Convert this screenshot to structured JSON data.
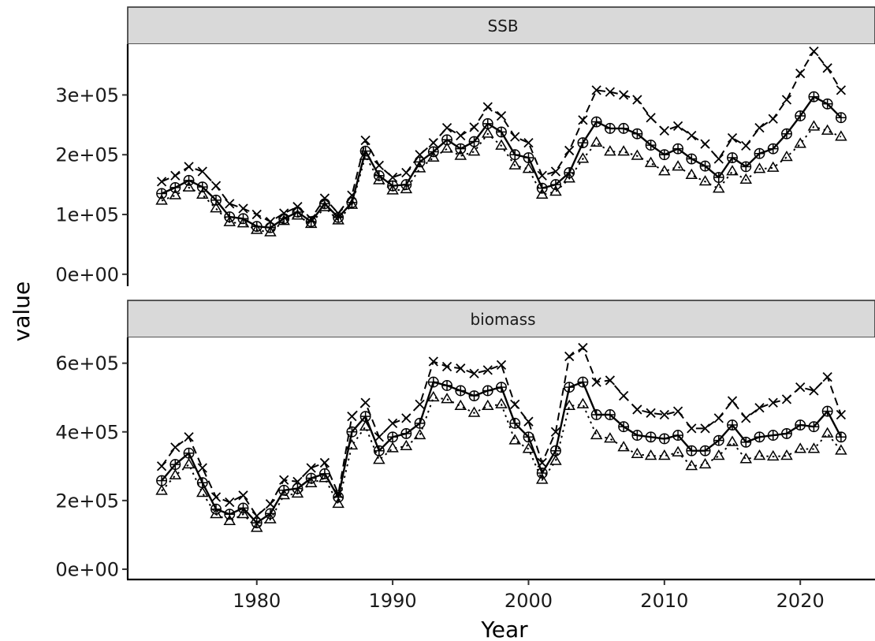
{
  "chart_data": {
    "type": "line",
    "xlabel": "Year",
    "ylabel": "value",
    "xlim": [
      1970.5,
      2025.5
    ],
    "x_ticks": [
      1980,
      1990,
      2000,
      2010,
      2020
    ],
    "x_tick_labels": [
      "1980",
      "1990",
      "2000",
      "2010",
      "2020"
    ],
    "grid": false,
    "colors": {
      "line": "#000000",
      "strip_fill": "#d9d9d9",
      "strip_border": "#333333",
      "background": "#ffffff"
    },
    "x": [
      1973,
      1974,
      1975,
      1976,
      1977,
      1978,
      1979,
      1980,
      1981,
      1982,
      1983,
      1984,
      1985,
      1986,
      1987,
      1988,
      1989,
      1990,
      1991,
      1992,
      1993,
      1994,
      1995,
      1996,
      1997,
      1998,
      1999,
      2000,
      2001,
      2002,
      2003,
      2004,
      2005,
      2006,
      2007,
      2008,
      2009,
      2010,
      2011,
      2012,
      2013,
      2014,
      2015,
      2016,
      2017,
      2018,
      2019,
      2020,
      2021,
      2022,
      2023
    ],
    "panels": [
      {
        "strip": "SSB",
        "ylim": [
          -20000,
          385000
        ],
        "y_ticks": [
          0,
          100000,
          200000,
          300000
        ],
        "y_tick_labels": [
          "0e+00",
          "1e+05",
          "2e+05",
          "3e+05"
        ],
        "series": [
          {
            "linetype": "dashed",
            "marker": "cross",
            "values": [
              155000,
              165000,
              180000,
              172000,
              148000,
              118000,
              110000,
              100000,
              88000,
              102000,
              113000,
              93000,
              127000,
              102000,
              132000,
              224000,
              182000,
              162000,
              170000,
              200000,
              220000,
              245000,
              232000,
              246000,
              280000,
              265000,
              230000,
              220000,
              165000,
              172000,
              207000,
              258000,
              308000,
              305000,
              300000,
              292000,
              262000,
              240000,
              248000,
              232000,
              218000,
              193000,
              228000,
              215000,
              245000,
              260000,
              292000,
              336000,
              373000,
              345000,
              308000
            ]
          },
          {
            "linetype": "solid",
            "marker": "circle-plus",
            "values": [
              135000,
              145000,
              157000,
              146000,
              124000,
              96000,
              93000,
              80000,
              78000,
              93000,
              104000,
              88000,
              118000,
              95000,
              120000,
              206000,
              165000,
              148000,
              150000,
              188000,
              205000,
              225000,
              210000,
              222000,
              252000,
              238000,
              200000,
              195000,
              144000,
              150000,
              170000,
              220000,
              255000,
              244000,
              244000,
              235000,
              216000,
              200000,
              210000,
              193000,
              181000,
              162000,
              195000,
              180000,
              202000,
              210000,
              235000,
              265000,
              297000,
              285000,
              262000
            ]
          },
          {
            "linetype": "dotted",
            "marker": "triangle",
            "values": [
              123000,
              132000,
              145000,
              133000,
              110000,
              87000,
              85000,
              74000,
              70000,
              89000,
              98000,
              84000,
              112000,
              90000,
              116000,
              198000,
              157000,
              140000,
              142000,
              177000,
              195000,
              210000,
              198000,
              205000,
              235000,
              215000,
              182000,
              176000,
              133000,
              138000,
              160000,
              193000,
              220000,
              205000,
              205000,
              198000,
              186000,
              172000,
              180000,
              166000,
              155000,
              143000,
              172000,
              158000,
              176000,
              178000,
              196000,
              218000,
              247000,
              240000,
              230000
            ]
          }
        ]
      },
      {
        "strip": "biomass",
        "ylim": [
          -30000,
          675000
        ],
        "y_ticks": [
          0,
          200000,
          400000,
          600000
        ],
        "y_tick_labels": [
          "0e+00",
          "2e+05",
          "4e+05",
          "6e+05"
        ],
        "series": [
          {
            "linetype": "dashed",
            "marker": "cross",
            "values": [
              300000,
              355000,
              385000,
              295000,
              210000,
              195000,
              215000,
              155000,
              190000,
              260000,
              255000,
              295000,
              310000,
              220000,
              445000,
              485000,
              385000,
              425000,
              440000,
              480000,
              605000,
              590000,
              585000,
              570000,
              580000,
              595000,
              480000,
              430000,
              310000,
              400000,
              620000,
              645000,
              545000,
              550000,
              505000,
              465000,
              455000,
              450000,
              460000,
              410000,
              410000,
              440000,
              490000,
              440000,
              470000,
              485000,
              495000,
              530000,
              520000,
              560000,
              450000
            ]
          },
          {
            "linetype": "solid",
            "marker": "circle-plus",
            "values": [
              258000,
              305000,
              338000,
              252000,
              175000,
              160000,
              178000,
              135000,
              162000,
              230000,
              235000,
              265000,
              278000,
              210000,
              400000,
              445000,
              345000,
              385000,
              395000,
              425000,
              545000,
              535000,
              520000,
              505000,
              520000,
              530000,
              425000,
              385000,
              280000,
              345000,
              530000,
              545000,
              450000,
              450000,
              415000,
              390000,
              385000,
              380000,
              390000,
              345000,
              345000,
              375000,
              420000,
              370000,
              385000,
              390000,
              395000,
              420000,
              415000,
              460000,
              385000
            ]
          },
          {
            "linetype": "dotted",
            "marker": "triangle",
            "values": [
              228000,
              273000,
              305000,
              222000,
              160000,
              140000,
              160000,
              120000,
              145000,
              215000,
              220000,
              250000,
              265000,
              190000,
              360000,
              415000,
              318000,
              352000,
              358000,
              390000,
              500000,
              495000,
              475000,
              455000,
              475000,
              480000,
              375000,
              350000,
              260000,
              315000,
              475000,
              480000,
              390000,
              380000,
              355000,
              335000,
              330000,
              330000,
              340000,
              300000,
              305000,
              330000,
              370000,
              320000,
              330000,
              328000,
              330000,
              350000,
              350000,
              395000,
              345000
            ]
          }
        ]
      }
    ]
  }
}
